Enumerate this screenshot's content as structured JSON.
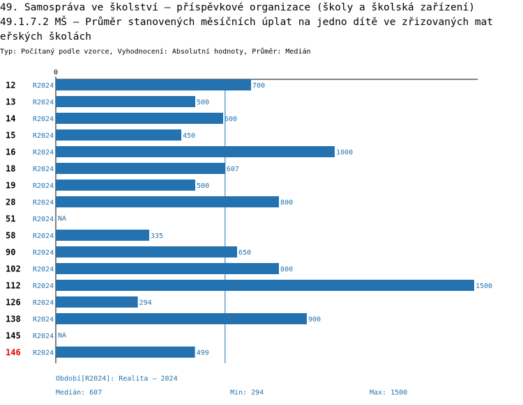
{
  "chart_data": {
    "type": "bar",
    "orientation": "horizontal",
    "title_lines": [
      "49. Samospráva ve školství – příspěvkové organizace (školy a školská zařízení)",
      "49.1.7.2 MŠ – Průměr stanovených měsíčních úplat na jedno dítě ve zřizovaných mat",
      "eřských školách"
    ],
    "subtitle": "Typ: Počítaný podle vzorce, Vyhodnocení: Absolutní hodnoty, Průměr: Medián",
    "categories": [
      "12",
      "13",
      "14",
      "15",
      "16",
      "18",
      "19",
      "28",
      "51",
      "58",
      "90",
      "102",
      "112",
      "126",
      "138",
      "145",
      "146"
    ],
    "highlight_category": "146",
    "highlight_color": "#e00000",
    "series": [
      {
        "name": "R2024",
        "color": "#2473b0",
        "values": [
          700,
          500,
          600,
          450,
          1000,
          607,
          500,
          800,
          null,
          335,
          650,
          800,
          1500,
          294,
          900,
          null,
          499
        ]
      }
    ],
    "missing_label": "NA",
    "xlim": [
      0,
      1500
    ],
    "xticks": [
      0
    ],
    "period": "Období[R2024]: Realita – 2024",
    "stats": [
      {
        "label": "Medián:",
        "value": 607
      },
      {
        "label": "Min:",
        "value": 294
      },
      {
        "label": "Max:",
        "value": 1500
      }
    ]
  }
}
